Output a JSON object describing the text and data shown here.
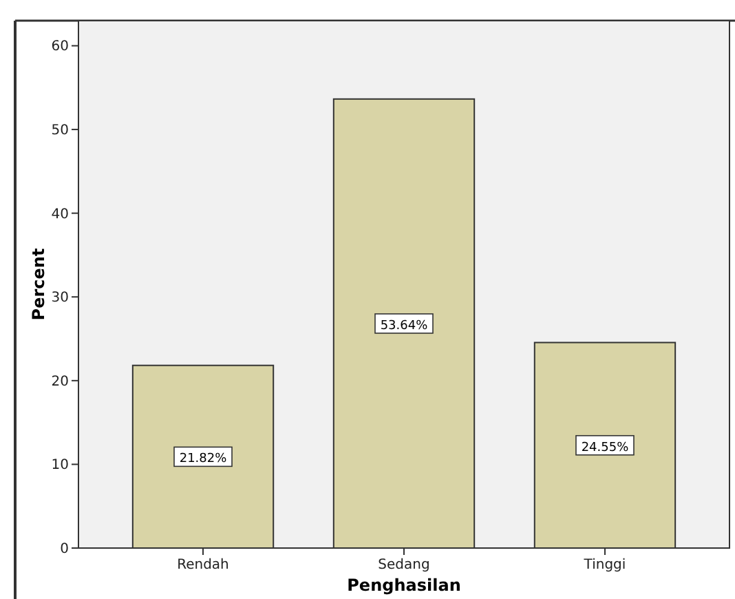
{
  "chart_data": {
    "type": "bar",
    "xlabel": "Penghasilan",
    "ylabel": "Percent",
    "categories": [
      "Rendah",
      "Sedang",
      "Tinggi"
    ],
    "values": [
      21.82,
      53.64,
      24.55
    ],
    "value_labels": [
      "21.82%",
      "53.64%",
      "24.55%"
    ],
    "color": "#d9d4a6",
    "ylim": [
      0,
      63
    ],
    "yticks": [
      0,
      10,
      20,
      30,
      40,
      50,
      60
    ],
    "grid": false
  }
}
